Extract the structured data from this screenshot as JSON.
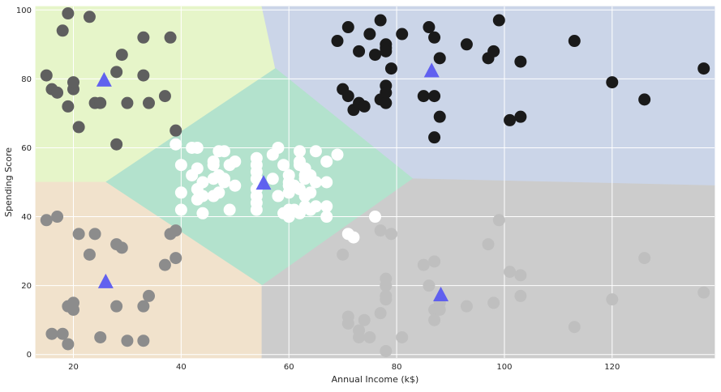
{
  "chart_data": {
    "type": "scatter",
    "title": "",
    "xlabel": "Annual Income (k$)",
    "ylabel": "Spending Score",
    "xlim": [
      13,
      139
    ],
    "ylim": [
      -1,
      101
    ],
    "xticks": [
      20,
      40,
      60,
      80,
      100,
      120
    ],
    "yticks": [
      0,
      20,
      40,
      60,
      80,
      100
    ],
    "grid": true,
    "background_color": "#eaeaf2",
    "regions": [
      {
        "color": "#e6f5c9",
        "polygon": [
          [
            13,
            101
          ],
          [
            55,
            101
          ],
          [
            57.5,
            83
          ],
          [
            26,
            50
          ],
          [
            13,
            50
          ]
        ]
      },
      {
        "color": "#cbd5e8",
        "polygon": [
          [
            55,
            101
          ],
          [
            139,
            101
          ],
          [
            139,
            49
          ],
          [
            83,
            51
          ],
          [
            57.5,
            83
          ]
        ]
      },
      {
        "color": "#b3e2cd",
        "polygon": [
          [
            57.5,
            83
          ],
          [
            83,
            51
          ],
          [
            55,
            20
          ],
          [
            26,
            50
          ]
        ]
      },
      {
        "color": "#f1e2cc",
        "polygon": [
          [
            13,
            50
          ],
          [
            26,
            50
          ],
          [
            55,
            20
          ],
          [
            55,
            -1
          ],
          [
            13,
            -1
          ]
        ]
      },
      {
        "color": "#cccccc",
        "polygon": [
          [
            55,
            20
          ],
          [
            83,
            51
          ],
          [
            139,
            49
          ],
          [
            139,
            -1
          ],
          [
            55,
            -1
          ]
        ]
      }
    ],
    "series": [
      {
        "color": "#5f5f5f",
        "points": [
          [
            15,
            81
          ],
          [
            16,
            77
          ],
          [
            17,
            76
          ],
          [
            18,
            94
          ],
          [
            19,
            72
          ],
          [
            19,
            99
          ],
          [
            20,
            77
          ],
          [
            20,
            79
          ],
          [
            21,
            66
          ],
          [
            23,
            98
          ],
          [
            24,
            73
          ],
          [
            25,
            73
          ],
          [
            28,
            82
          ],
          [
            28,
            61
          ],
          [
            29,
            87
          ],
          [
            30,
            73
          ],
          [
            33,
            92
          ],
          [
            33,
            81
          ],
          [
            34,
            73
          ],
          [
            37,
            75
          ],
          [
            38,
            92
          ],
          [
            39,
            65
          ]
        ]
      },
      {
        "color": "#1a1a1a",
        "points": [
          [
            69,
            91
          ],
          [
            70,
            77
          ],
          [
            71,
            95
          ],
          [
            71,
            75
          ],
          [
            72,
            71
          ],
          [
            73,
            88
          ],
          [
            73,
            73
          ],
          [
            74,
            72
          ],
          [
            75,
            93
          ],
          [
            76,
            87
          ],
          [
            77,
            97
          ],
          [
            77,
            74
          ],
          [
            78,
            90
          ],
          [
            78,
            89
          ],
          [
            78,
            88
          ],
          [
            78,
            78
          ],
          [
            78,
            76
          ],
          [
            78,
            73
          ],
          [
            79,
            83
          ],
          [
            81,
            93
          ],
          [
            85,
            75
          ],
          [
            86,
            95
          ],
          [
            87,
            92
          ],
          [
            87,
            75
          ],
          [
            87,
            63
          ],
          [
            88,
            86
          ],
          [
            88,
            69
          ],
          [
            93,
            90
          ],
          [
            97,
            86
          ],
          [
            98,
            88
          ],
          [
            99,
            97
          ],
          [
            101,
            68
          ],
          [
            103,
            85
          ],
          [
            103,
            69
          ],
          [
            113,
            91
          ],
          [
            120,
            79
          ],
          [
            126,
            74
          ],
          [
            137,
            83
          ]
        ]
      },
      {
        "color": "#ffffff",
        "points": [
          [
            39,
            61
          ],
          [
            40,
            55
          ],
          [
            40,
            47
          ],
          [
            40,
            42
          ],
          [
            42,
            60
          ],
          [
            42,
            52
          ],
          [
            43,
            60
          ],
          [
            43,
            54
          ],
          [
            43,
            48
          ],
          [
            43,
            45
          ],
          [
            44,
            50
          ],
          [
            44,
            46
          ],
          [
            44,
            41
          ],
          [
            46,
            56
          ],
          [
            46,
            55
          ],
          [
            46,
            51
          ],
          [
            46,
            46
          ],
          [
            47,
            59
          ],
          [
            47,
            52
          ],
          [
            47,
            47
          ],
          [
            48,
            59
          ],
          [
            48,
            51
          ],
          [
            48,
            50
          ],
          [
            49,
            55
          ],
          [
            49,
            42
          ],
          [
            50,
            56
          ],
          [
            50,
            49
          ],
          [
            54,
            57
          ],
          [
            54,
            55
          ],
          [
            54,
            53
          ],
          [
            54,
            51
          ],
          [
            54,
            48
          ],
          [
            54,
            46
          ],
          [
            54,
            44
          ],
          [
            54,
            42
          ],
          [
            57,
            58
          ],
          [
            57,
            51
          ],
          [
            58,
            60
          ],
          [
            58,
            46
          ],
          [
            59,
            55
          ],
          [
            59,
            41
          ],
          [
            60,
            52
          ],
          [
            60,
            50
          ],
          [
            60,
            49
          ],
          [
            60,
            47
          ],
          [
            60,
            42
          ],
          [
            60,
            40
          ],
          [
            61,
            49
          ],
          [
            61,
            42
          ],
          [
            62,
            56
          ],
          [
            62,
            55
          ],
          [
            62,
            59
          ],
          [
            62,
            48
          ],
          [
            62,
            41
          ],
          [
            63,
            54
          ],
          [
            63,
            52
          ],
          [
            63,
            51
          ],
          [
            63,
            46
          ],
          [
            63,
            43
          ],
          [
            64,
            52
          ],
          [
            64,
            47
          ],
          [
            64,
            42
          ],
          [
            65,
            59
          ],
          [
            65,
            50
          ],
          [
            65,
            43
          ],
          [
            67,
            56
          ],
          [
            67,
            50
          ],
          [
            67,
            43
          ],
          [
            67,
            40
          ],
          [
            69,
            58
          ],
          [
            71,
            35
          ],
          [
            72,
            34
          ],
          [
            76,
            40
          ]
        ]
      },
      {
        "color": "#8c8c8c",
        "points": [
          [
            15,
            39
          ],
          [
            16,
            6
          ],
          [
            17,
            40
          ],
          [
            18,
            6
          ],
          [
            19,
            3
          ],
          [
            19,
            14
          ],
          [
            20,
            15
          ],
          [
            20,
            13
          ],
          [
            21,
            35
          ],
          [
            23,
            29
          ],
          [
            24,
            35
          ],
          [
            25,
            5
          ],
          [
            28,
            14
          ],
          [
            28,
            32
          ],
          [
            29,
            31
          ],
          [
            30,
            4
          ],
          [
            33,
            4
          ],
          [
            33,
            14
          ],
          [
            34,
            17
          ],
          [
            37,
            26
          ],
          [
            38,
            35
          ],
          [
            39,
            36
          ],
          [
            39,
            28
          ]
        ]
      },
      {
        "color": "#bfbfbf",
        "points": [
          [
            70,
            29
          ],
          [
            71,
            11
          ],
          [
            71,
            9
          ],
          [
            73,
            5
          ],
          [
            73,
            7
          ],
          [
            74,
            10
          ],
          [
            75,
            5
          ],
          [
            77,
            12
          ],
          [
            77,
            36
          ],
          [
            78,
            22
          ],
          [
            78,
            20
          ],
          [
            78,
            17
          ],
          [
            78,
            16
          ],
          [
            78,
            1
          ],
          [
            79,
            35
          ],
          [
            81,
            5
          ],
          [
            85,
            26
          ],
          [
            86,
            20
          ],
          [
            87,
            27
          ],
          [
            87,
            13
          ],
          [
            87,
            10
          ],
          [
            88,
            15
          ],
          [
            88,
            13
          ],
          [
            93,
            14
          ],
          [
            97,
            32
          ],
          [
            98,
            15
          ],
          [
            99,
            39
          ],
          [
            101,
            24
          ],
          [
            103,
            23
          ],
          [
            103,
            17
          ],
          [
            113,
            8
          ],
          [
            120,
            16
          ],
          [
            126,
            28
          ],
          [
            137,
            18
          ]
        ]
      }
    ],
    "centroids": {
      "color": "#5a5af0",
      "points": [
        [
          26,
          20.9
        ],
        [
          25.7,
          79.4
        ],
        [
          55.3,
          49.5
        ],
        [
          86.5,
          82.1
        ],
        [
          88.2,
          17.1
        ]
      ]
    }
  }
}
